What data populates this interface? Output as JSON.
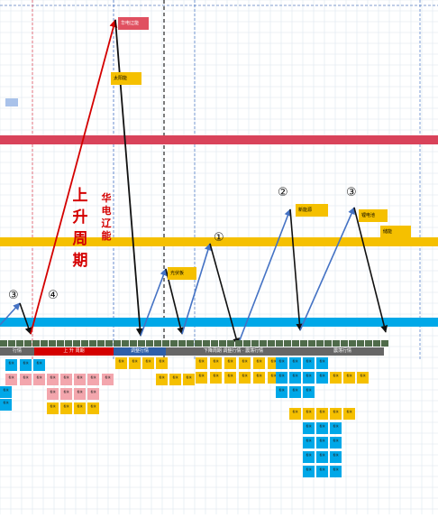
{
  "colors": {
    "grid": "#dde6ee",
    "red_band": "#d9435a",
    "yellow_band": "#f5c000",
    "blue_band": "#00a8e8",
    "red_line": "#d40000",
    "blue_line": "#4472c4",
    "black_line": "#111111",
    "tag_red": "#e05060",
    "tag_yellow": "#f5c000",
    "cell_blue": "#00a8e8",
    "cell_pink": "#f3a6ad",
    "cell_yellow": "#f5c000"
  },
  "diagram": {
    "title_vertical": "上升周期",
    "subtitle_vertical": "华电辽能",
    "circled_labels": [
      "③",
      "④",
      "①",
      "②",
      "③"
    ],
    "tags": [
      "华电辽能",
      "太阳能",
      "光伏板",
      "新能源",
      "锂电池",
      "储能"
    ],
    "phase_labels": [
      "行情",
      "上 升 周期",
      "调整行情",
      "下降周期 调整行情 · 震荡行情",
      "震荡行情"
    ],
    "cell_text": "板块"
  }
}
